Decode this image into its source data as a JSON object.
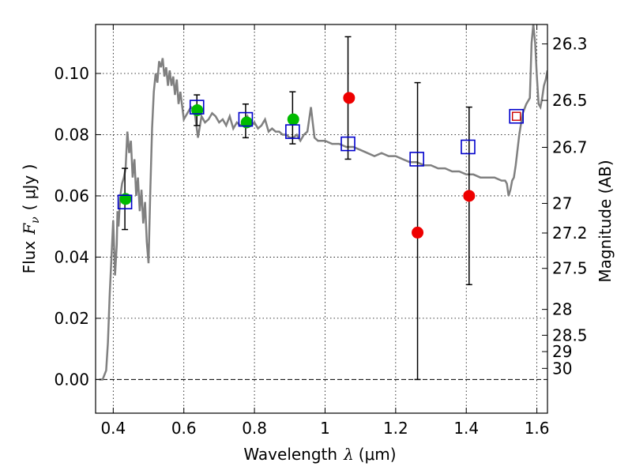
{
  "chart_data": {
    "type": "scatter",
    "xlabel": "Wavelength",
    "xlabel_symbol": "λ",
    "xlabel_unit": "(μm)",
    "ylabel": "Flux",
    "ylabel_symbol": "F",
    "ylabel_subscript": "ν",
    "ylabel_unit": "( μJy )",
    "y2label": "Magnitude (AB)",
    "xlim": [
      0.35,
      1.63
    ],
    "ylim": [
      -0.011,
      0.116
    ],
    "grid": true,
    "x_ticks": [
      0.4,
      0.6,
      0.8,
      1.0,
      1.2,
      1.4,
      1.6
    ],
    "x_tick_labels": [
      "0.4",
      "0.6",
      "0.8",
      "1",
      "1.2",
      "1.4",
      "1.6"
    ],
    "y_ticks": [
      0.0,
      0.02,
      0.04,
      0.06,
      0.08,
      0.1
    ],
    "y_tick_labels": [
      "0.00",
      "0.02",
      "0.04",
      "0.06",
      "0.08",
      "0.10"
    ],
    "magnitude_ticks": [
      26.3,
      26.5,
      26.7,
      27,
      27.2,
      27.5,
      28,
      28.5,
      29,
      30
    ],
    "magnitude_tick_labels": [
      "26.3",
      "26.5",
      "26.7",
      "27",
      "27.2",
      "27.5",
      "28",
      "28.5",
      "29",
      "30"
    ],
    "colors": {
      "model": "#808080",
      "detection": "#00bb00",
      "nondetection": "#ee0000",
      "model_flux": "#0000cc",
      "errorbar": "#000000"
    },
    "model_spectrum": {
      "x": [
        0.36,
        0.37,
        0.38,
        0.385,
        0.39,
        0.395,
        0.4,
        0.405,
        0.41,
        0.412,
        0.415,
        0.42,
        0.425,
        0.43,
        0.435,
        0.44,
        0.445,
        0.45,
        0.455,
        0.46,
        0.465,
        0.47,
        0.475,
        0.48,
        0.485,
        0.49,
        0.495,
        0.5,
        0.505,
        0.51,
        0.515,
        0.52,
        0.525,
        0.53,
        0.535,
        0.54,
        0.545,
        0.55,
        0.555,
        0.56,
        0.565,
        0.57,
        0.575,
        0.58,
        0.585,
        0.59,
        0.6,
        0.61,
        0.62,
        0.63,
        0.64,
        0.65,
        0.66,
        0.67,
        0.68,
        0.69,
        0.7,
        0.71,
        0.72,
        0.73,
        0.74,
        0.75,
        0.76,
        0.77,
        0.78,
        0.79,
        0.8,
        0.81,
        0.82,
        0.83,
        0.84,
        0.85,
        0.86,
        0.87,
        0.88,
        0.89,
        0.9,
        0.91,
        0.92,
        0.93,
        0.94,
        0.95,
        0.96,
        0.97,
        0.98,
        1.0,
        1.02,
        1.04,
        1.06,
        1.08,
        1.1,
        1.12,
        1.14,
        1.16,
        1.18,
        1.2,
        1.22,
        1.24,
        1.26,
        1.28,
        1.3,
        1.32,
        1.34,
        1.36,
        1.38,
        1.4,
        1.42,
        1.44,
        1.46,
        1.48,
        1.5,
        1.51,
        1.515,
        1.52,
        1.525,
        1.53,
        1.535,
        1.54,
        1.55,
        1.56,
        1.57,
        1.58,
        1.585,
        1.59,
        1.595,
        1.6,
        1.605,
        1.61,
        1.615,
        1.62,
        1.625,
        1.63
      ],
      "y": [
        0.0,
        0.0,
        0.003,
        0.012,
        0.028,
        0.04,
        0.052,
        0.034,
        0.044,
        0.055,
        0.05,
        0.06,
        0.064,
        0.066,
        0.069,
        0.081,
        0.074,
        0.078,
        0.066,
        0.072,
        0.06,
        0.066,
        0.055,
        0.062,
        0.051,
        0.058,
        0.045,
        0.038,
        0.062,
        0.082,
        0.094,
        0.1,
        0.097,
        0.104,
        0.102,
        0.105,
        0.099,
        0.102,
        0.096,
        0.101,
        0.096,
        0.099,
        0.093,
        0.098,
        0.09,
        0.094,
        0.085,
        0.087,
        0.089,
        0.088,
        0.079,
        0.086,
        0.084,
        0.085,
        0.087,
        0.086,
        0.084,
        0.085,
        0.083,
        0.086,
        0.082,
        0.084,
        0.083,
        0.084,
        0.086,
        0.083,
        0.084,
        0.082,
        0.083,
        0.085,
        0.081,
        0.082,
        0.081,
        0.081,
        0.08,
        0.08,
        0.079,
        0.079,
        0.08,
        0.078,
        0.08,
        0.081,
        0.089,
        0.079,
        0.078,
        0.078,
        0.077,
        0.077,
        0.076,
        0.076,
        0.075,
        0.074,
        0.073,
        0.074,
        0.073,
        0.073,
        0.072,
        0.071,
        0.071,
        0.07,
        0.07,
        0.069,
        0.069,
        0.068,
        0.068,
        0.067,
        0.067,
        0.066,
        0.066,
        0.066,
        0.065,
        0.065,
        0.064,
        0.06,
        0.062,
        0.065,
        0.066,
        0.07,
        0.08,
        0.087,
        0.09,
        0.092,
        0.11,
        0.116,
        0.11,
        0.099,
        0.09,
        0.089,
        0.092,
        0.096,
        0.098,
        0.101
      ]
    },
    "detections": {
      "x": [
        0.435,
        0.638,
        0.778,
        0.91
      ],
      "y": [
        0.059,
        0.088,
        0.084,
        0.085
      ]
    },
    "nondetections": {
      "x": [
        1.068,
        1.262,
        1.408
      ],
      "y": [
        0.092,
        0.048,
        0.06
      ]
    },
    "model_fluxes": {
      "x": [
        0.433,
        0.637,
        0.775,
        0.908,
        1.065,
        1.26,
        1.405,
        1.542
      ],
      "y": [
        0.058,
        0.089,
        0.085,
        0.081,
        0.077,
        0.072,
        0.076,
        0.086
      ]
    },
    "errorbars": {
      "x": [
        0.433,
        0.637,
        0.775,
        0.908,
        1.065,
        1.262,
        1.408
      ],
      "low": [
        0.049,
        0.083,
        0.079,
        0.077,
        0.072,
        0.0,
        0.031
      ],
      "high": [
        0.069,
        0.093,
        0.09,
        0.094,
        0.112,
        0.097,
        0.089
      ]
    },
    "model_open_marker": {
      "x": [
        1.542
      ],
      "y": [
        0.086
      ],
      "color": "#cc0000"
    }
  }
}
